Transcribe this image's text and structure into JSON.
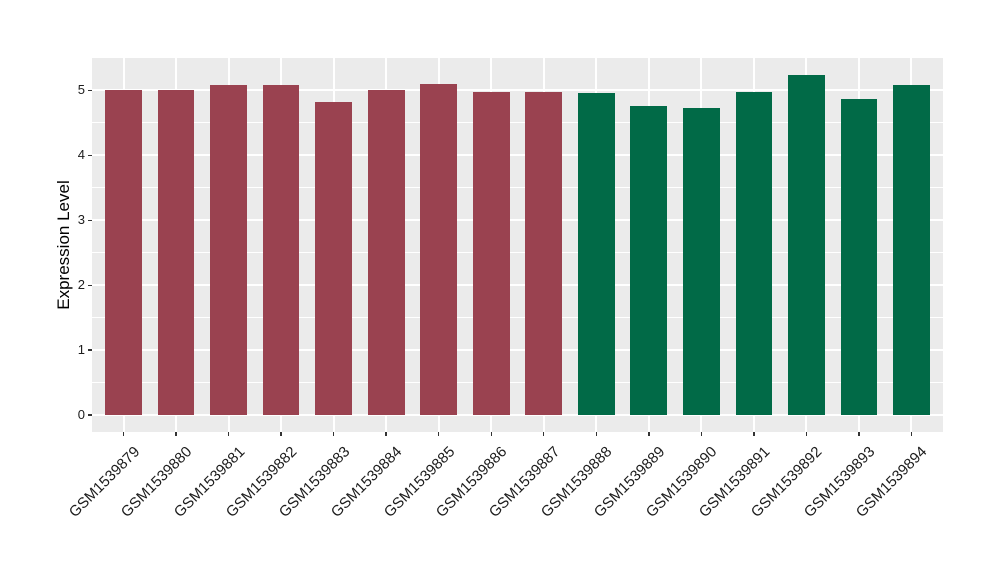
{
  "figure": {
    "background": "#FFFFFF",
    "panel_background": "#EBEBEB",
    "grid_major_color": "#FFFFFF",
    "grid_minor_color": "#FFFFFF",
    "tick_mark_color": "#333333",
    "axis_text_color": "#1C1C1C",
    "axis_title_color": "#000000"
  },
  "chart_data": {
    "type": "bar",
    "title": "",
    "xlabel": "",
    "ylabel": "Expression Level",
    "ylim": [
      -0.26,
      5.5
    ],
    "yticks": [
      0,
      1,
      2,
      3,
      4,
      5
    ],
    "yticks_minor": [
      0.5,
      1.5,
      2.5,
      3.5,
      4.5
    ],
    "grid": "on",
    "legend": "none",
    "bar_width_fraction": 0.7,
    "categories": [
      "GSM1539879",
      "GSM1539880",
      "GSM1539881",
      "GSM1539882",
      "GSM1539883",
      "GSM1539884",
      "GSM1539885",
      "GSM1539886",
      "GSM1539887",
      "GSM1539888",
      "GSM1539889",
      "GSM1539890",
      "GSM1539891",
      "GSM1539892",
      "GSM1539893",
      "GSM1539894"
    ],
    "values": [
      5.01,
      5.01,
      5.09,
      5.08,
      4.82,
      5.0,
      5.1,
      4.98,
      4.97,
      4.96,
      4.76,
      4.73,
      4.98,
      5.24,
      4.87,
      5.08
    ],
    "bar_colors": [
      "#9A4250",
      "#9A4250",
      "#9A4250",
      "#9A4250",
      "#9A4250",
      "#9A4250",
      "#9A4250",
      "#9A4250",
      "#9A4250",
      "#016A47",
      "#016A47",
      "#016A47",
      "#016A47",
      "#016A47",
      "#016A47",
      "#016A47"
    ]
  }
}
